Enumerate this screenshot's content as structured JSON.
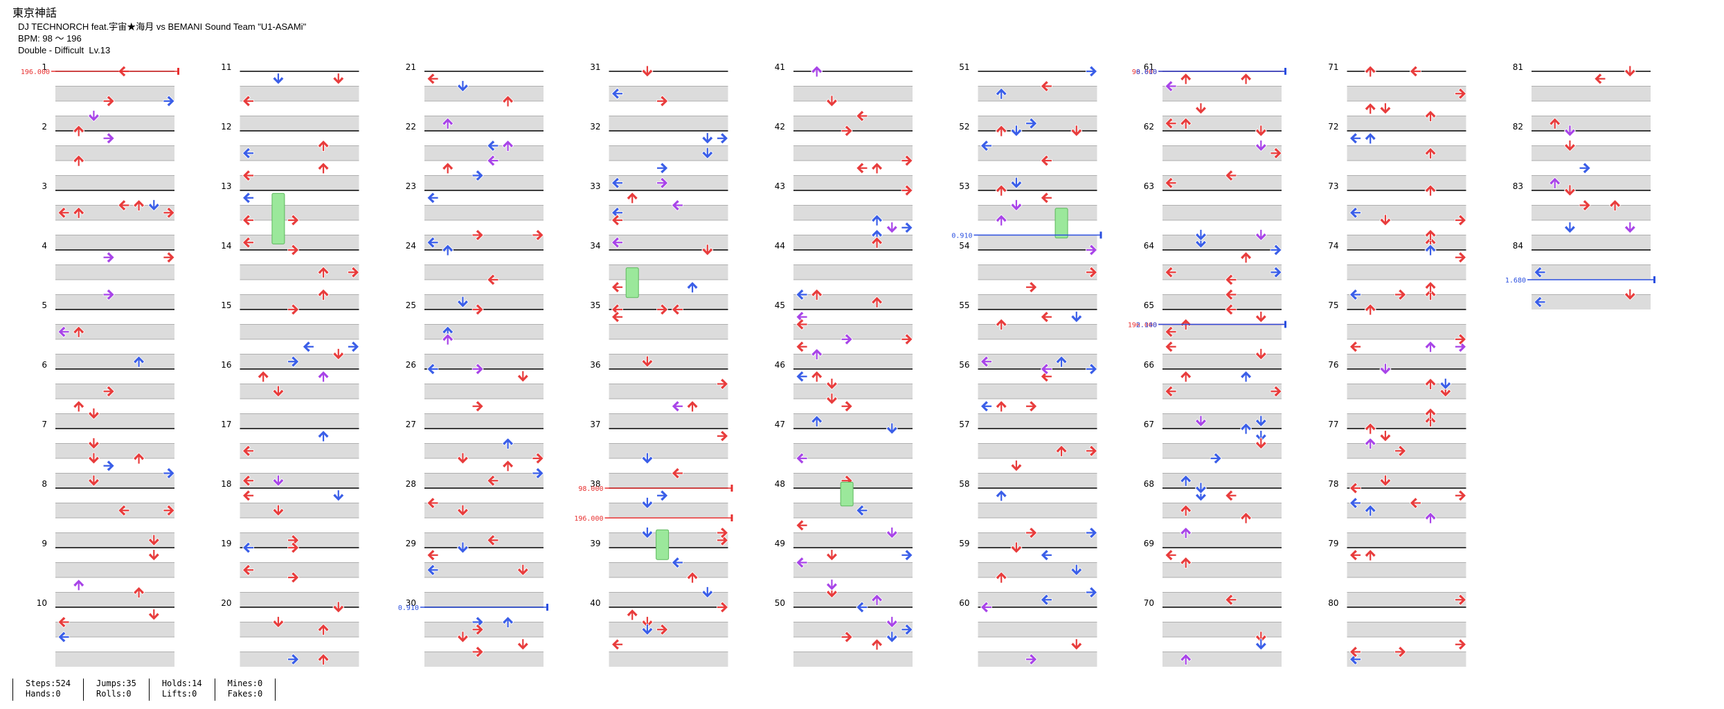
{
  "header": {
    "title": "東京神話",
    "artist_line": "DJ TECHNORCH feat.宇宙★海月 vs BEMANI Sound Team \"U1-ASAMi\"",
    "bpm_line": "BPM: 98 ～ 196",
    "difficulty_line": "Double - Difficult  Lv.13"
  },
  "colors": {
    "red": "#e83c3c",
    "blue": "#3a5ee8",
    "purple": "#a844e8",
    "yellow": "#f0e640",
    "green": "#9be89b",
    "bpm_red": "#e83030",
    "bpm_blue": "#2a4fe0",
    "row_gray": "#dcdcdc",
    "line": "#000000"
  },
  "icons": {
    "note": "arrow-note-icon",
    "hold": "freeze-hold-icon"
  },
  "measure_labels": [
    "1",
    "2",
    "3",
    "4",
    "5",
    "6",
    "7",
    "8",
    "9",
    "10",
    "11",
    "12",
    "13",
    "14",
    "15",
    "16",
    "17",
    "18",
    "19",
    "20",
    "21",
    "22",
    "23",
    "24",
    "25",
    "26",
    "27",
    "28",
    "29",
    "30",
    "31",
    "32",
    "33",
    "34",
    "35",
    "36",
    "37",
    "38",
    "39",
    "40",
    "41",
    "42",
    "43",
    "44",
    "45",
    "46",
    "47",
    "48",
    "49",
    "50",
    "51",
    "52",
    "53",
    "54",
    "55",
    "56",
    "57",
    "58",
    "59",
    "60",
    "61",
    "62",
    "63",
    "64",
    "65",
    "66",
    "67",
    "68",
    "69",
    "70",
    "71",
    "72",
    "73",
    "74",
    "75",
    "76",
    "77",
    "78",
    "79",
    "80",
    "81",
    "82",
    "83",
    "84"
  ],
  "bpm_markers": [
    {
      "measure": 1.0,
      "label": "196.000",
      "kind": "red"
    },
    {
      "measure": 30.0,
      "label": "0.910",
      "kind": "blue"
    },
    {
      "measure": 38.0,
      "label": "98.000",
      "kind": "red"
    },
    {
      "measure": 38.5,
      "label": "196.000",
      "kind": "red"
    },
    {
      "measure": 53.75,
      "label": "0.910",
      "kind": "blue"
    },
    {
      "measure": 61.0,
      "label": "98.000",
      "kind": "red"
    },
    {
      "measure": 61.0,
      "label": "0.610",
      "kind": "blue"
    },
    {
      "measure": 65.25,
      "label": "196.000",
      "kind": "red"
    },
    {
      "measure": 65.25,
      "label": "2.140",
      "kind": "blue"
    },
    {
      "measure": 84.5,
      "label": "1.680",
      "kind": "blue"
    }
  ],
  "footer": {
    "steps": "Steps:524",
    "hands": "Hands:0",
    "jumps": "Jumps:35",
    "rolls": "Rolls:0",
    "holds": "Holds:14",
    "lifts": "Lifts:0",
    "mines": "Mines:0",
    "fakes": "Fakes:0"
  }
}
